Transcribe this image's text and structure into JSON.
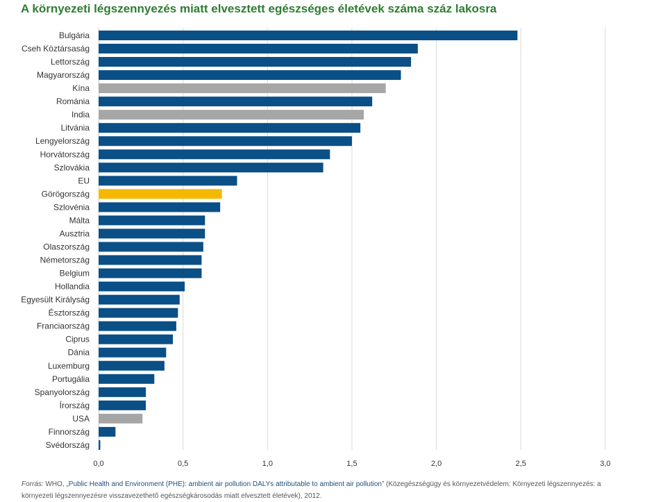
{
  "title": "A környezeti légszennyezés miatt elvesztett egészséges életévek száma száz lakosra",
  "source": {
    "label": "Forrás:",
    "prefix": " WHO, „",
    "link_text": "Public Health and Environment (PHE): ambient air pollution DALYs attributable to ambient air pollution",
    "suffix": "” (Közegészségügy és környezetvédelem: Környezeti légszennyezés: a környezeti légszennyezésre visszavezethető egészségkárosodás miatt elvesztett életévek), 2012."
  },
  "colors": {
    "default": "#0a4f86",
    "highlight": "#f5b800",
    "non_eu": "#a6a6a6",
    "grid": "#d9d9d9"
  },
  "chart_data": {
    "type": "bar",
    "orientation": "horizontal",
    "title": "A környezeti légszennyezés miatt elvesztett egészséges életévek száma száz lakosra",
    "xlim": [
      0,
      3.0
    ],
    "ticks": [
      0,
      0.5,
      1.0,
      1.5,
      2.0,
      2.5,
      3.0
    ],
    "tick_labels": [
      "0,0",
      "0,5",
      "1,0",
      "1,5",
      "2,0",
      "2,5",
      "3,0"
    ],
    "grid": "vertical",
    "categories": [
      "Bulgária",
      "Cseh Köztársaság",
      "Lettország",
      "Magyarország",
      "Kína",
      "Románia",
      "India",
      "Litvánia",
      "Lengyelország",
      "Horvátország",
      "Szlovákia",
      "EU",
      "Görögország",
      "Szlovénia",
      "Málta",
      "Ausztria",
      "Olaszország",
      "Németország",
      "Belgium",
      "Hollandia",
      "Egyesült Királyság",
      "Észtország",
      "Franciaország",
      "Ciprus",
      "Dánia",
      "Luxemburg",
      "Portugália",
      "Spanyolország",
      "Írország",
      "USA",
      "Finnország",
      "Svédország"
    ],
    "values": [
      2.48,
      1.89,
      1.85,
      1.79,
      1.7,
      1.62,
      1.57,
      1.55,
      1.5,
      1.37,
      1.33,
      0.82,
      0.73,
      0.72,
      0.63,
      0.63,
      0.62,
      0.61,
      0.61,
      0.51,
      0.48,
      0.47,
      0.46,
      0.44,
      0.4,
      0.39,
      0.33,
      0.28,
      0.28,
      0.26,
      0.1,
      0.01
    ],
    "bar_groups": [
      "default",
      "default",
      "default",
      "default",
      "non_eu",
      "default",
      "non_eu",
      "default",
      "default",
      "default",
      "default",
      "default",
      "highlight",
      "default",
      "default",
      "default",
      "default",
      "default",
      "default",
      "default",
      "default",
      "default",
      "default",
      "default",
      "default",
      "default",
      "default",
      "default",
      "default",
      "non_eu",
      "default",
      "default"
    ]
  }
}
